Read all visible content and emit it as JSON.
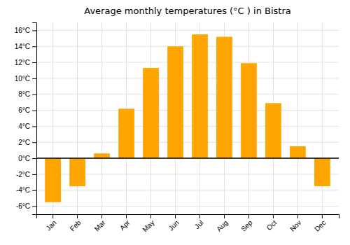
{
  "chart_data": {
    "type": "bar",
    "title": "Average monthly temperatures (°C ) in Bistra",
    "categories": [
      "Jan",
      "Feb",
      "Mar",
      "Apr",
      "May",
      "Jun",
      "Jul",
      "Aug",
      "Sep",
      "Oct",
      "Nov",
      "Dec"
    ],
    "values": [
      -5.5,
      -3.5,
      0.6,
      6.2,
      11.3,
      14.0,
      15.5,
      15.2,
      11.9,
      6.9,
      1.5,
      -3.5
    ],
    "color": "#FFA500",
    "ylim": [
      -7,
      17
    ],
    "yticks": [
      {
        "value": -6,
        "label": "-6°C"
      },
      {
        "value": -4,
        "label": "-4°C"
      },
      {
        "value": -2,
        "label": "-2°C"
      },
      {
        "value": 0,
        "label": "0°C"
      },
      {
        "value": 2,
        "label": "2°C"
      },
      {
        "value": 4,
        "label": "4°C"
      },
      {
        "value": 6,
        "label": "6°C"
      },
      {
        "value": 8,
        "label": "8°C"
      },
      {
        "value": 10,
        "label": "10°C"
      },
      {
        "value": 12,
        "label": "12°C"
      },
      {
        "value": 14,
        "label": "14°C"
      },
      {
        "value": 16,
        "label": "16°C"
      }
    ],
    "grid": true
  }
}
